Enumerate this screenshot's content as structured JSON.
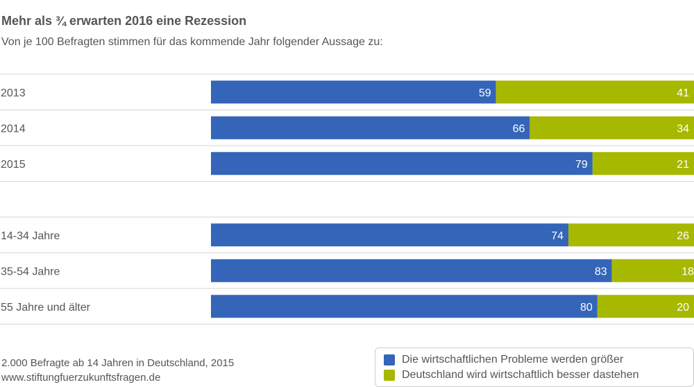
{
  "title": "Mehr als ¾ erwarten 2016 eine Rezession",
  "subtitle": "Von je 100 Befragten stimmen für das kommende Jahr folgender Aussage zu:",
  "source_line1": "2.000 Befragte ab 14 Jahren in Deutschland, 2015",
  "source_line2": "www.stiftungfuerzukunftsfragen.de",
  "colors": {
    "blue": "#3465b9",
    "green": "#a7b800",
    "grid": "#d6d6d6",
    "text": "#555555"
  },
  "chart_data": {
    "type": "bar",
    "orientation": "horizontal",
    "stacked": true,
    "xlim": [
      0,
      100
    ],
    "groups": [
      {
        "categories": [
          "2013",
          "2014",
          "2015"
        ]
      },
      {
        "categories": [
          "14-34 Jahre",
          "35-54 Jahre",
          "55 Jahre und älter"
        ]
      }
    ],
    "categories": [
      "2013",
      "2014",
      "2015",
      "14-34 Jahre",
      "35-54 Jahre",
      "55 Jahre und älter"
    ],
    "series": [
      {
        "name": "Die wirtschaftlichen Probleme werden größer",
        "color": "#3465b9",
        "values": [
          59,
          66,
          79,
          74,
          83,
          80
        ]
      },
      {
        "name": "Deutschland wird wirtschaftlich besser dastehen",
        "color": "#a7b800",
        "values": [
          41,
          34,
          21,
          26,
          18,
          20
        ]
      }
    ],
    "legend_position": "bottom-right"
  }
}
